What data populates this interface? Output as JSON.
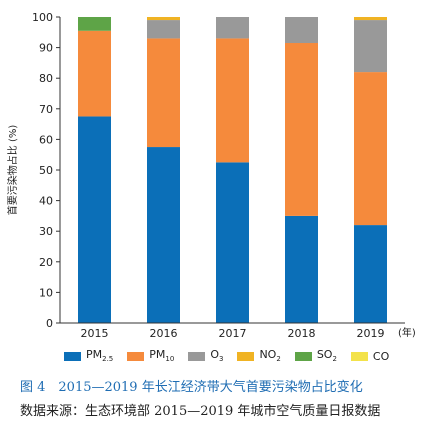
{
  "chart_data": {
    "type": "bar",
    "stacked": true,
    "categories": [
      "2015",
      "2016",
      "2017",
      "2018",
      "2019"
    ],
    "x_unit": "(年)",
    "ylabel": "首要污染物占比 (%)",
    "ylim": [
      0,
      100
    ],
    "yticks": [
      0,
      10,
      20,
      30,
      40,
      50,
      60,
      70,
      80,
      90,
      100
    ],
    "grid": false,
    "legend_position": "bottom",
    "series": [
      {
        "name": "PM",
        "sub": "2.5",
        "color": "#0b6fb8",
        "values": [
          67.5,
          57.5,
          52.5,
          35,
          32
        ]
      },
      {
        "name": "PM",
        "sub": "10",
        "color": "#f58a3c",
        "values": [
          28,
          35.5,
          40.5,
          56.5,
          50
        ]
      },
      {
        "name": "O",
        "sub": "3",
        "color": "#999999",
        "values": [
          0,
          6,
          7,
          8.5,
          17
        ]
      },
      {
        "name": "NO",
        "sub": "2",
        "color": "#f0b323",
        "values": [
          0,
          1,
          0,
          0,
          1
        ]
      },
      {
        "name": "SO",
        "sub": "2",
        "color": "#5ea447",
        "values": [
          4.5,
          0,
          0,
          0,
          0
        ]
      },
      {
        "name": "CO",
        "sub": "",
        "color": "#f3e24a",
        "values": [
          0,
          0,
          0,
          0,
          0
        ]
      }
    ]
  },
  "caption": "图 4　2015—2019 年长江经济带大气首要污染物占比变化",
  "source": "数据来源：生态环境部 2015—2019 年城市空气质量日报数据"
}
